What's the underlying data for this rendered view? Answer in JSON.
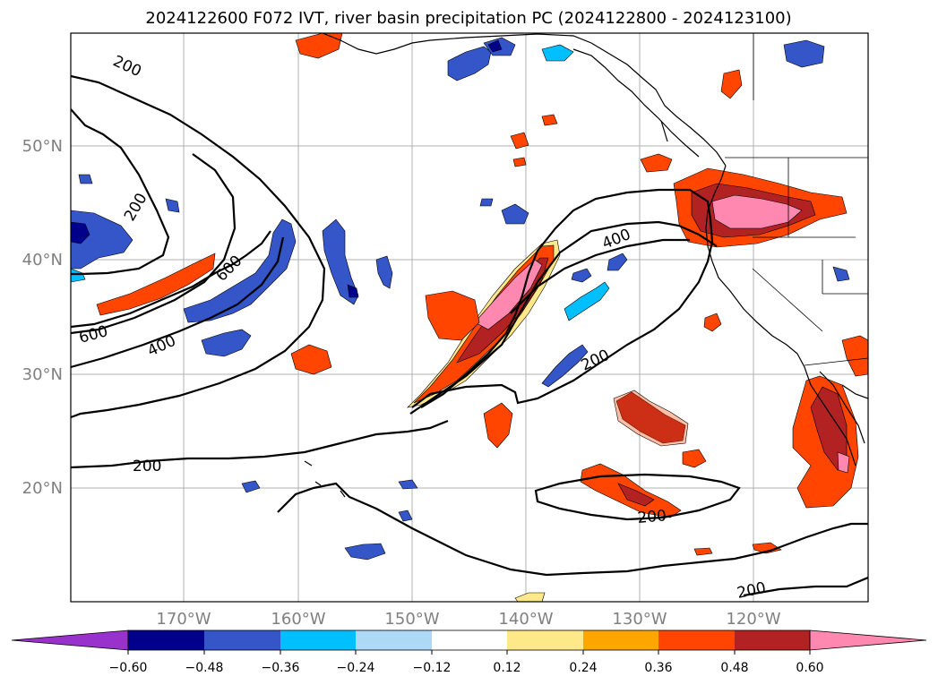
{
  "title": "2024122600 F072 IVT, river basin precipitation PC (2024122800 - 2024123100)",
  "map": {
    "lat_labels": [
      {
        "label": "50°N",
        "lat": 50
      },
      {
        "label": "40°N",
        "lat": 40
      },
      {
        "label": "30°N",
        "lat": 30
      },
      {
        "label": "20°N",
        "lat": 20
      }
    ],
    "lon_labels": [
      {
        "label": "170°W",
        "lon": -170
      },
      {
        "label": "160°W",
        "lon": -160
      },
      {
        "label": "150°W",
        "lon": -150
      },
      {
        "label": "140°W",
        "lon": -140
      },
      {
        "label": "130°W",
        "lon": -130
      },
      {
        "label": "120°W",
        "lon": -120
      }
    ],
    "contour_labels": [
      "200",
      "200",
      "600",
      "600",
      "400",
      "400",
      "200",
      "200",
      "200",
      "200"
    ],
    "grid_color": "#b0b0b0"
  },
  "colorbar": {
    "ticks": [
      "−0.60",
      "−0.48",
      "−0.36",
      "−0.24",
      "−0.12",
      "0.12",
      "0.24",
      "0.36",
      "0.48",
      "0.60"
    ],
    "under_color": "#9932cc",
    "over_color": "#ff88b0",
    "colors": [
      "#9932cc",
      "#00008b",
      "#3456c8",
      "#00bfff",
      "#add8f6",
      "#ffffff",
      "#ffe88a",
      "#ffa500",
      "#ff4500",
      "#b22222",
      "#ff88b0"
    ]
  },
  "palette": {
    "pink": "#ff88b0",
    "red": "#b22222",
    "orangered": "#ff4500",
    "orange": "#ffa500",
    "yellow": "#ffe88a",
    "navy": "#00008b",
    "blue": "#3456c8",
    "cyan": "#00bfff",
    "lightblue": "#add8f6"
  }
}
